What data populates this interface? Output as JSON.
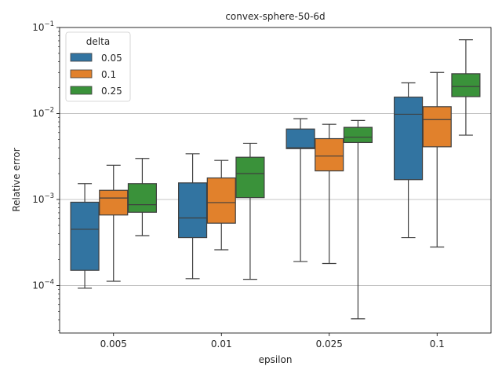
{
  "chart_data": {
    "type": "box",
    "title": "convex-sphere-50-6d",
    "xlabel": "epsilon",
    "ylabel": "Relative error",
    "yscale": "log",
    "ylim": [
      2.8e-05,
      0.1
    ],
    "y_ticks": [
      {
        "value": 0.0001,
        "base": "10",
        "exp": "−4"
      },
      {
        "value": 0.001,
        "base": "10",
        "exp": "−3"
      },
      {
        "value": 0.01,
        "base": "10",
        "exp": "−2"
      },
      {
        "value": 0.1,
        "base": "10",
        "exp": "−1"
      }
    ],
    "grid": "horizontal",
    "categories": [
      "0.005",
      "0.01",
      "0.025",
      "0.1"
    ],
    "legend": {
      "title": "delta",
      "location": "upper-left"
    },
    "series": [
      {
        "name": "0.05",
        "color": "#3274a1",
        "boxes": [
          {
            "whisker_low": 9.3e-05,
            "q1": 0.00015,
            "median": 0.00045,
            "q3": 0.00093,
            "whisker_high": 0.00153
          },
          {
            "whisker_low": 0.00012,
            "q1": 0.00036,
            "median": 0.00061,
            "q3": 0.00156,
            "whisker_high": 0.0034
          },
          {
            "whisker_low": 0.00019,
            "q1": 0.0039,
            "median": 0.004,
            "q3": 0.0066,
            "whisker_high": 0.0087
          },
          {
            "whisker_low": 0.00036,
            "q1": 0.0017,
            "median": 0.0098,
            "q3": 0.0155,
            "whisker_high": 0.0227
          }
        ]
      },
      {
        "name": "0.1",
        "color": "#e1812c",
        "boxes": [
          {
            "whisker_low": 0.000112,
            "q1": 0.00066,
            "median": 0.00104,
            "q3": 0.00128,
            "whisker_high": 0.0025
          },
          {
            "whisker_low": 0.00026,
            "q1": 0.00053,
            "median": 0.00092,
            "q3": 0.00178,
            "whisker_high": 0.00285
          },
          {
            "whisker_low": 0.00018,
            "q1": 0.00215,
            "median": 0.0032,
            "q3": 0.0051,
            "whisker_high": 0.0075
          },
          {
            "whisker_low": 0.00028,
            "q1": 0.0041,
            "median": 0.0085,
            "q3": 0.012,
            "whisker_high": 0.03
          }
        ]
      },
      {
        "name": "0.25",
        "color": "#3a923a",
        "boxes": [
          {
            "whisker_low": 0.00038,
            "q1": 0.00071,
            "median": 0.00087,
            "q3": 0.00153,
            "whisker_high": 0.003
          },
          {
            "whisker_low": 0.000118,
            "q1": 0.00105,
            "median": 0.002,
            "q3": 0.0031,
            "whisker_high": 0.0045
          },
          {
            "whisker_low": 4.1e-05,
            "q1": 0.0046,
            "median": 0.0053,
            "q3": 0.0069,
            "whisker_high": 0.0083
          },
          {
            "whisker_low": 0.0056,
            "q1": 0.0157,
            "median": 0.0206,
            "q3": 0.029,
            "whisker_high": 0.072
          }
        ]
      }
    ]
  }
}
